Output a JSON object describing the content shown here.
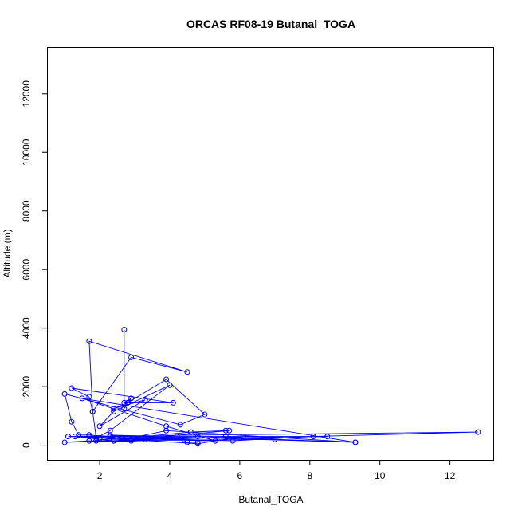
{
  "chart_data": {
    "type": "line",
    "title": "ORCAS RF08-19 Butanal_TOGA",
    "xlabel": "Butanal_TOGA",
    "ylabel": "Altitude (m)",
    "xlim": [
      0.52,
      13.26
    ],
    "ylim": [
      -500,
      13600
    ],
    "xticks": [
      2,
      4,
      6,
      8,
      10,
      12
    ],
    "yticks": [
      0,
      2000,
      4000,
      6000,
      8000,
      10000,
      12000
    ],
    "grid": false,
    "markers": "open-circle",
    "colors": {
      "series": "#0000ff",
      "axis": "#000000",
      "background": "#ffffff"
    },
    "series": [
      {
        "x": [
          2.7,
          2.7,
          2.9,
          2.7,
          2.8,
          4.1,
          1.2,
          1.7,
          1.8,
          2.9,
          4.5,
          1.7,
          1.8,
          1.9,
          2.3,
          4.0,
          2.4,
          2.0,
          3.3,
          2.4,
          2.8,
          3.9,
          5.0,
          4.3,
          1.0,
          1.2,
          1.4,
          1.7,
          2.3,
          2.4,
          4.6,
          5.6,
          5.7,
          2.4,
          1.3,
          5.8,
          8.1,
          12.8,
          1.1,
          2.0,
          4.2,
          8.5,
          2.0,
          4.8,
          9.3,
          1.5,
          3.9,
          5.3,
          3.3,
          2.7,
          3.9,
          9.3,
          2.3,
          2.9,
          4.8,
          6.1,
          2.9,
          1.7,
          5.6,
          7.0,
          1.7,
          1.0,
          2.4,
          4.4,
          1.9,
          4.5,
          4.8
        ],
        "y": [
          3950,
          1250,
          1600,
          1450,
          1450,
          1450,
          1950,
          1650,
          1150,
          3000,
          2500,
          3550,
          1150,
          250,
          500,
          2050,
          1150,
          650,
          1550,
          1250,
          1450,
          2250,
          1050,
          700,
          1750,
          800,
          350,
          350,
          300,
          200,
          450,
          500,
          500,
          150,
          300,
          150,
          300,
          450,
          300,
          250,
          300,
          300,
          200,
          300,
          100,
          1600,
          650,
          150,
          200,
          200,
          500,
          100,
          350,
          200,
          50,
          300,
          150,
          300,
          300,
          200,
          150,
          100,
          150,
          200,
          150,
          100,
          100
        ]
      }
    ]
  }
}
